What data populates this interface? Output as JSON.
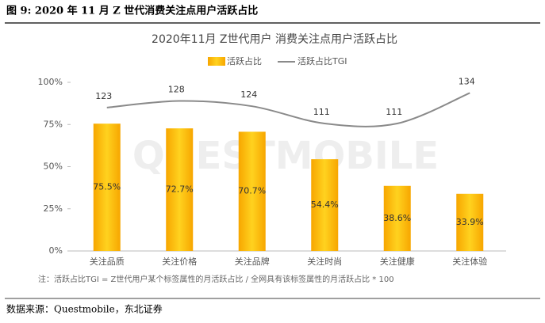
{
  "header": "图 9: 2020 年 11 月 Z 世代消费关注点用户活跃占比",
  "chart_data": {
    "type": "bar",
    "title": "2020年11月 Z世代用户 消费关注点用户活跃占比",
    "watermark": "QUESTMOBILE",
    "categories": [
      "关注品质",
      "关注价格",
      "关注品牌",
      "关注时尚",
      "关注健康",
      "关注体验"
    ],
    "series": [
      {
        "name": "活跃占比",
        "color": "#f6b60c",
        "values": [
          75.5,
          72.7,
          70.7,
          54.4,
          38.6,
          33.9
        ],
        "value_labels": [
          "75.5%",
          "72.7%",
          "70.7%",
          "54.4%",
          "38.6%",
          "33.9%"
        ]
      },
      {
        "name": "活跃占比TGI",
        "type": "line",
        "axis": "y2",
        "color": "#8a8a8a",
        "values": [
          123,
          128,
          124,
          111,
          111,
          134
        ]
      }
    ],
    "ylim": [
      0,
      100
    ],
    "yticks": [
      {
        "value": 0,
        "label": "0%"
      },
      {
        "value": 25,
        "label": "25%"
      },
      {
        "value": 50,
        "label": "50%"
      },
      {
        "value": 75,
        "label": "75%"
      },
      {
        "value": 100,
        "label": "100%"
      }
    ],
    "y2lim": [
      15,
      142
    ],
    "note": "注：活跃占比TGI = Z世代用户某个标签属性的月活跃占比 / 全网具有该标签属性的月活跃占比 * 100"
  },
  "source": "数据来源：Questmobile，东北证券"
}
